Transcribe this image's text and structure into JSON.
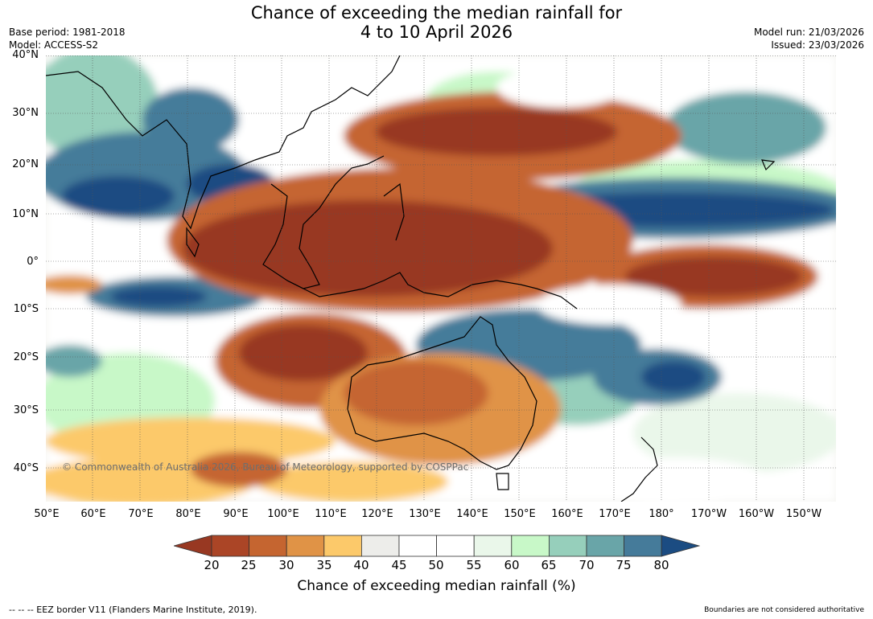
{
  "title": {
    "line1": "Chance of exceeding the median rainfall for",
    "line2": "4 to 10 April 2026"
  },
  "meta": {
    "base_period": "Base period: 1981-2018",
    "model": "Model: ACCESS-S2",
    "model_run": "Model run: 21/03/2026",
    "issued": "Issued: 23/03/2026"
  },
  "axes": {
    "lat_labels": [
      "40°N",
      "30°N",
      "20°N",
      "10°N",
      "0°",
      "10°S",
      "20°S",
      "30°S",
      "40°S"
    ],
    "lon_labels": [
      "50°E",
      "60°E",
      "70°E",
      "80°E",
      "90°E",
      "100°E",
      "110°E",
      "120°E",
      "130°E",
      "140°E",
      "150°E",
      "160°E",
      "170°E",
      "180°",
      "170°W",
      "160°W",
      "150°W"
    ]
  },
  "copyright": "© Commonwealth of Australia 2026, Bureau of Meteorology, supported by COSPPac",
  "colorbar": {
    "ticks": [
      "20",
      "25",
      "30",
      "35",
      "40",
      "45",
      "50",
      "55",
      "60",
      "65",
      "70",
      "75",
      "80"
    ],
    "label": "Chance of exceeding median rainfall (%)",
    "colors": [
      "#983822",
      "#ab4526",
      "#c56530",
      "#e09346",
      "#fcc96a",
      "#ededea",
      "#ffffff",
      "#ffffff",
      "#eaf7ea",
      "#c8f8c8",
      "#96cfbb",
      "#69a5a8",
      "#457b9a",
      "#1b4c82"
    ]
  },
  "footer": {
    "eez": "--  --  -- EEZ border V11 (Flanders Marine Institute, 2019).",
    "boundaries": "Boundaries are not considered authoritative"
  }
}
